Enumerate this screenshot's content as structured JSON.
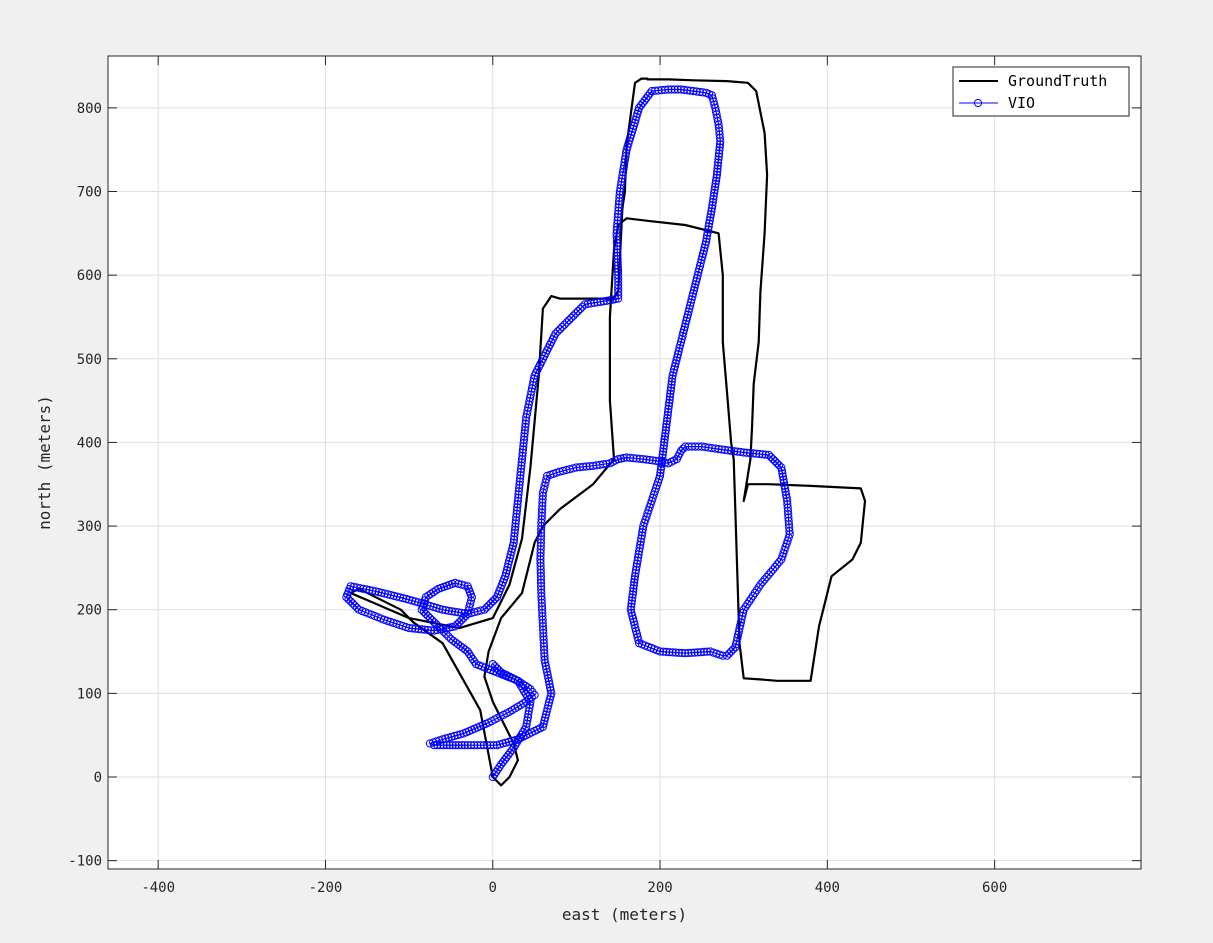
{
  "chart_data": {
    "type": "line",
    "title": "",
    "xlabel": "east (meters)",
    "ylabel": "north (meters)",
    "xlim": [
      -460,
      775
    ],
    "ylim": [
      -110,
      862
    ],
    "xticks": [
      -400,
      -200,
      0,
      200,
      400,
      600
    ],
    "xtick_labels": [
      "-400",
      "-200",
      "0",
      "200",
      "400",
      "600"
    ],
    "yticks": [
      -100,
      0,
      100,
      200,
      300,
      400,
      500,
      600,
      700,
      800
    ],
    "ytick_labels": [
      "-100",
      "0",
      "100",
      "200",
      "300",
      "400",
      "500",
      "600",
      "700",
      "800"
    ],
    "grid": true,
    "legend_position": "top-right",
    "background": "#ffffff",
    "figure_background": "#f0f0f0",
    "series": [
      {
        "name": "GroundTruth",
        "color": "#000000",
        "marker": "none",
        "x": [
          0,
          -15,
          -60,
          -95,
          -110,
          -160,
          -170,
          -100,
          -40,
          0,
          20,
          35,
          45,
          55,
          60,
          70,
          80,
          120,
          140,
          145,
          150,
          152,
          155,
          158,
          160,
          170,
          178,
          185,
          185,
          188,
          195,
          200,
          210,
          240,
          280,
          305,
          315,
          325,
          328,
          325,
          320,
          318,
          312,
          310,
          308,
          300,
          305,
          330,
          380,
          440,
          445,
          440,
          430,
          405,
          395,
          390,
          380,
          340,
          315,
          300,
          295,
          290,
          288,
          285,
          280,
          275,
          275,
          270,
          230,
          185,
          160,
          150,
          145,
          140,
          140,
          145,
          120,
          80,
          60,
          50,
          40,
          35,
          10,
          -5,
          -10,
          0,
          15,
          25,
          30,
          25,
          20,
          10,
          0
        ],
        "y": [
          0,
          80,
          160,
          185,
          200,
          225,
          220,
          190,
          178,
          190,
          230,
          285,
          370,
          480,
          560,
          575,
          572,
          572,
          572,
          573,
          580,
          620,
          680,
          700,
          755,
          830,
          835,
          835,
          834,
          834,
          834,
          834,
          834,
          833,
          832,
          830,
          820,
          770,
          720,
          650,
          580,
          520,
          470,
          420,
          380,
          330,
          350,
          350,
          348,
          345,
          330,
          280,
          260,
          240,
          200,
          180,
          115,
          115,
          117,
          118,
          160,
          320,
          380,
          400,
          460,
          520,
          600,
          650,
          660,
          665,
          668,
          660,
          630,
          550,
          450,
          380,
          350,
          320,
          300,
          280,
          240,
          220,
          190,
          150,
          120,
          90,
          60,
          40,
          20,
          10,
          0,
          -10,
          0
        ]
      },
      {
        "name": "VIO",
        "color": "#0000ff",
        "marker": "circle",
        "x": [
          0,
          10,
          25,
          40,
          45,
          30,
          5,
          -20,
          -30,
          -50,
          -70,
          -85,
          -80,
          -65,
          -45,
          -30,
          -25,
          -30,
          -45,
          -70,
          -100,
          -130,
          -160,
          -175,
          -170,
          -140,
          -100,
          -60,
          -30,
          -10,
          5,
          15,
          25,
          30,
          35,
          40,
          50,
          75,
          110,
          140,
          150,
          150,
          148,
          152,
          160,
          175,
          190,
          210,
          225,
          240,
          255,
          262,
          266,
          270,
          272,
          268,
          262,
          255,
          245,
          235,
          225,
          215,
          210,
          205,
          200,
          190,
          180,
          175,
          170,
          165,
          175,
          200,
          230,
          260,
          275,
          280,
          290,
          300,
          320,
          345,
          355,
          352,
          345,
          330,
          300,
          270,
          250,
          230,
          225,
          220,
          210,
          195,
          180,
          160,
          150,
          140,
          120,
          100,
          80,
          65,
          60,
          58,
          57,
          58,
          60,
          62,
          70,
          60,
          30,
          5,
          -30,
          -55,
          -70,
          -75,
          -60,
          -35,
          -5,
          20,
          40,
          50,
          45,
          30,
          10,
          0
        ],
        "y": [
          0,
          15,
          35,
          60,
          90,
          115,
          125,
          135,
          150,
          165,
          185,
          200,
          215,
          225,
          232,
          228,
          215,
          195,
          180,
          175,
          178,
          188,
          200,
          215,
          228,
          222,
          212,
          200,
          195,
          200,
          215,
          240,
          280,
          330,
          380,
          430,
          480,
          530,
          565,
          570,
          572,
          600,
          650,
          700,
          750,
          800,
          820,
          822,
          822,
          820,
          818,
          815,
          800,
          780,
          760,
          720,
          680,
          640,
          600,
          560,
          520,
          480,
          440,
          400,
          360,
          330,
          300,
          270,
          240,
          200,
          160,
          150,
          148,
          150,
          145,
          145,
          155,
          200,
          230,
          260,
          290,
          330,
          370,
          385,
          388,
          392,
          395,
          395,
          390,
          380,
          375,
          378,
          380,
          382,
          380,
          375,
          372,
          370,
          365,
          360,
          340,
          300,
          260,
          220,
          180,
          140,
          100,
          60,
          45,
          38,
          38,
          38,
          38,
          40,
          45,
          52,
          65,
          78,
          90,
          98,
          105,
          115,
          125,
          135
        ]
      }
    ]
  }
}
